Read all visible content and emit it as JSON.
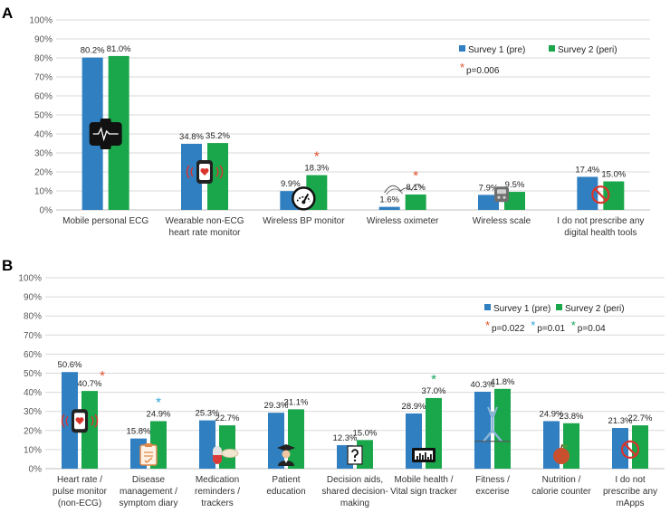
{
  "colors": {
    "survey1": "#2f7fc1",
    "survey2": "#1aa64a",
    "star_red": "#e0522a",
    "star_blue": "#2aa3d8",
    "star_green": "#17a45a",
    "grid": "#d9d9d9",
    "axis_text": "#595959"
  },
  "chart_data": [
    {
      "panel": "A",
      "type": "bar",
      "ylim": [
        0,
        100
      ],
      "yticks": [
        "0%",
        "10%",
        "20%",
        "30%",
        "40%",
        "50%",
        "60%",
        "70%",
        "80%",
        "90%",
        "100%"
      ],
      "legend_position": "top-right",
      "categories": [
        [
          "Mobile personal ECG"
        ],
        [
          "Wearable non-ECG",
          "heart rate monitor"
        ],
        [
          "Wireless BP monitor"
        ],
        [
          "Wireless oximeter"
        ],
        [
          "Wireless scale"
        ],
        [
          "I do not prescribe any",
          "digital health tools"
        ]
      ],
      "series": [
        {
          "name": "Survey 1 (pre)",
          "values": [
            80.2,
            34.8,
            9.9,
            1.6,
            7.9,
            17.4
          ],
          "labels": [
            "80.2%",
            "34.8%",
            "9.9%",
            "1.6%",
            "7.9%",
            "17.4%"
          ]
        },
        {
          "name": "Survey 2 (peri)",
          "values": [
            81.0,
            35.2,
            18.3,
            8.1,
            9.5,
            15.0
          ],
          "labels": [
            "81.0%",
            "35.2%",
            "18.3%",
            "8.1%",
            "9.5%",
            "15.0%"
          ]
        }
      ],
      "significance": [
        {
          "category_index": 2,
          "symbol": "*",
          "color": "star_red"
        },
        {
          "category_index": 3,
          "symbol": "*",
          "color": "star_red"
        }
      ],
      "pvalue_notes": [
        {
          "symbol": "*",
          "text": "p=0.006",
          "color": "star_red"
        }
      ],
      "icons": [
        "ecg-watch-icon",
        "heart-rate-watch-icon",
        "bp-gauge-icon",
        "oximeter-icon",
        "scale-icon",
        "no-symbol-icon"
      ]
    },
    {
      "panel": "B",
      "type": "bar",
      "ylim": [
        0,
        100
      ],
      "yticks": [
        "0%",
        "10%",
        "20%",
        "30%",
        "40%",
        "50%",
        "60%",
        "70%",
        "80%",
        "90%",
        "100%"
      ],
      "legend_position": "top-right",
      "categories": [
        [
          "Heart rate /",
          "pulse monitor",
          "(non-ECG)"
        ],
        [
          "Disease",
          "management /",
          "symptom diary"
        ],
        [
          "Medication",
          "reminders /",
          "trackers"
        ],
        [
          "Patient",
          "education"
        ],
        [
          "Decision aids,",
          "shared decision-",
          "making"
        ],
        [
          "Mobile health /",
          "Vital sign tracker"
        ],
        [
          "Fitness /",
          "excerise"
        ],
        [
          "Nutrition /",
          "calorie counter"
        ],
        [
          "I do not",
          "prescribe any",
          "mApps"
        ]
      ],
      "series": [
        {
          "name": "Survey 1 (pre)",
          "values": [
            50.6,
            15.8,
            25.3,
            29.3,
            12.3,
            28.9,
            40.3,
            24.9,
            21.3
          ],
          "labels": [
            "50.6%",
            "15.8%",
            "25.3%",
            "29.3%",
            "12.3%",
            "28.9%",
            "40.3%",
            "24.9%",
            "21.3%"
          ]
        },
        {
          "name": "Survey 2 (peri)",
          "values": [
            40.7,
            24.9,
            22.7,
            31.1,
            15.0,
            37.0,
            41.8,
            23.8,
            22.7
          ],
          "labels": [
            "40.7%",
            "24.9%",
            "22.7%",
            "31.1%",
            "15.0%",
            "37.0%",
            "41.8%",
            "23.8%",
            "22.7%"
          ]
        }
      ],
      "significance": [
        {
          "category_index": 0,
          "symbol": "*",
          "color": "star_red"
        },
        {
          "category_index": 1,
          "symbol": "*",
          "color": "star_blue"
        },
        {
          "category_index": 5,
          "symbol": "*",
          "color": "star_green"
        }
      ],
      "pvalue_notes": [
        {
          "symbol": "*",
          "text": "p=0.022",
          "color": "star_red"
        },
        {
          "symbol": "*",
          "text": "p=0.01",
          "color": "star_blue"
        },
        {
          "symbol": "*",
          "text": "p=0.04",
          "color": "star_green"
        }
      ],
      "icons": [
        "heart-rate-watch-icon",
        "symptom-diary-icon",
        "pill-icon",
        "graduate-icon",
        "question-doc-icon",
        "vital-tracker-icon",
        "fitness-icon",
        "apple-icon",
        "no-symbol-icon"
      ]
    }
  ]
}
